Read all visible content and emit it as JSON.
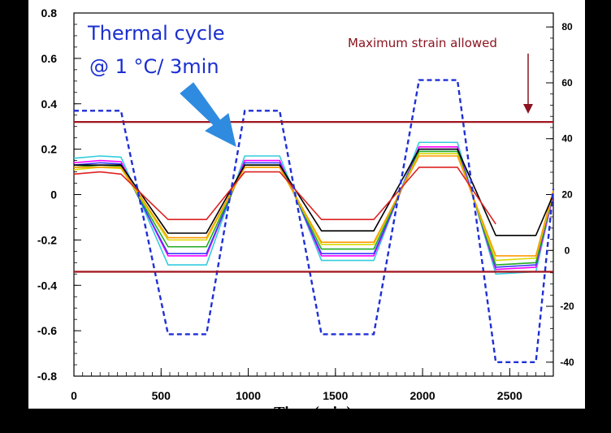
{
  "chart_data": {
    "type": "line",
    "title": "",
    "xlabel": "Time (min)",
    "ylabel": "",
    "y2label": "",
    "xlim": [
      0,
      2750
    ],
    "ylim": [
      -0.8,
      0.8
    ],
    "y2lim": [
      -45,
      85
    ],
    "x_ticks": [
      0,
      500,
      1000,
      1500,
      2000,
      2500
    ],
    "y_ticks": [
      "0.8",
      "0.6",
      "0.4",
      "0.2",
      "0",
      "-0.2",
      "-0.4",
      "-0.6",
      "-0.8"
    ],
    "y2_ticks": [
      "80",
      "60",
      "40",
      "20",
      "0",
      "-20",
      "-40"
    ],
    "grid": false,
    "annotations": {
      "thermal_line1": "Thermal cycle",
      "thermal_line2": "@  1 °C/ 3min",
      "max_strain": "Maximum strain allowed"
    },
    "limit_lines": [
      0.32,
      -0.34
    ],
    "colors": {
      "limit": "#a0141e",
      "temperature": "#1f2fd6",
      "arrow_blue": "#2f8be0",
      "arrow_red": "#8b1420"
    },
    "temperature_series": {
      "axis": "right",
      "style": "dashed",
      "x": [
        0,
        270,
        540,
        760,
        980,
        1180,
        1420,
        1720,
        1980,
        2200,
        2420,
        2650,
        2750
      ],
      "y": [
        50,
        50,
        -30,
        -30,
        50,
        50,
        -30,
        -30,
        61,
        61,
        -40,
        -40,
        22
      ]
    },
    "series": [
      {
        "color": "#33ccdd",
        "values": [
          0.16,
          0.17,
          0.165,
          -0.31,
          -0.31,
          0.17,
          0.17,
          -0.29,
          -0.29,
          0.23,
          0.23,
          -0.35,
          -0.34,
          0.0
        ]
      },
      {
        "color": "#ff00ff",
        "values": [
          0.14,
          0.15,
          0.145,
          -0.27,
          -0.27,
          0.15,
          0.15,
          -0.27,
          -0.27,
          0.21,
          0.21,
          -0.33,
          -0.32,
          0.0
        ]
      },
      {
        "color": "#3a3aff",
        "values": [
          0.13,
          0.14,
          0.135,
          -0.26,
          -0.26,
          0.14,
          0.14,
          -0.26,
          -0.26,
          0.2,
          0.2,
          -0.32,
          -0.31,
          0.01
        ]
      },
      {
        "color": "#22aa22",
        "values": [
          0.12,
          0.13,
          0.125,
          -0.23,
          -0.23,
          0.13,
          0.13,
          -0.24,
          -0.24,
          0.19,
          0.19,
          -0.31,
          -0.3,
          0.01
        ]
      },
      {
        "color": "#d8d800",
        "values": [
          0.11,
          0.12,
          0.115,
          -0.2,
          -0.2,
          0.12,
          0.12,
          -0.22,
          -0.22,
          0.18,
          0.18,
          -0.29,
          -0.28,
          0.01
        ]
      },
      {
        "color": "#ff9900",
        "values": [
          0.12,
          0.12,
          0.12,
          -0.19,
          -0.19,
          0.12,
          0.12,
          -0.21,
          -0.21,
          0.17,
          0.17,
          -0.27,
          -0.27,
          0.02
        ]
      },
      {
        "color": "#000000",
        "values": [
          0.13,
          0.13,
          0.13,
          -0.17,
          -0.17,
          0.13,
          0.13,
          -0.16,
          -0.16,
          0.2,
          0.2,
          -0.18,
          -0.18,
          0.0
        ]
      },
      {
        "color": "#dd2222",
        "values": [
          0.09,
          0.1,
          0.09,
          -0.11,
          -0.11,
          0.1,
          0.1,
          -0.11,
          -0.11,
          0.12,
          0.12,
          -0.13
        ]
      }
    ],
    "series_x": [
      0,
      150,
      270,
      540,
      760,
      980,
      1180,
      1420,
      1720,
      1980,
      2200,
      2420,
      2650,
      2750
    ]
  }
}
